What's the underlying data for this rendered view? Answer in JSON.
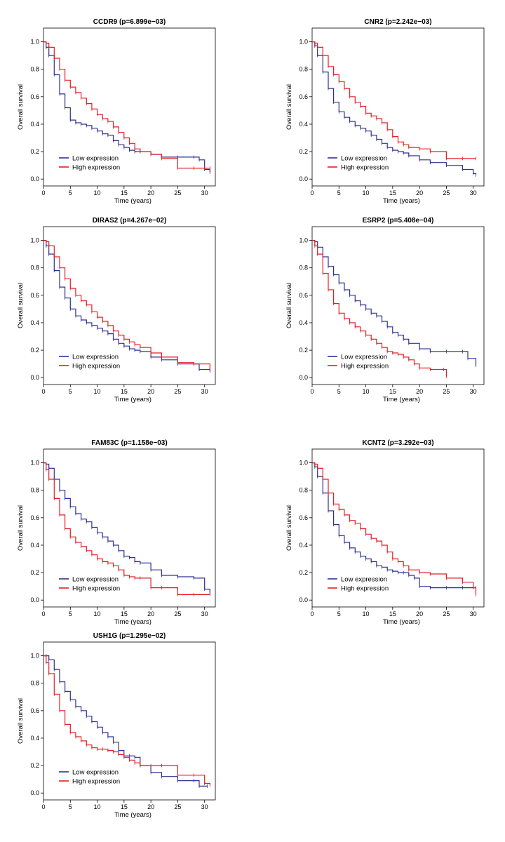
{
  "colors": {
    "low": "#2e3192",
    "high": "#e31e24",
    "axis": "#000000"
  },
  "chart_data": [
    {
      "type": "line",
      "title": "CCDR9 (p=6.899e−03)",
      "xlabel": "Time (years)",
      "ylabel": "Overall survival",
      "xlim": [
        0,
        32
      ],
      "ylim": [
        -0.05,
        1.1
      ],
      "xticks": [
        "0",
        "5",
        "10",
        "15",
        "20",
        "25",
        "30"
      ],
      "yticks": [
        "0.0",
        "0.2",
        "0.4",
        "0.6",
        "0.8",
        "1.0"
      ],
      "legend": [
        "Low expression",
        "High expression"
      ],
      "series": [
        {
          "name": "Low expression",
          "x": [
            0,
            0.5,
            1,
            2,
            3,
            4,
            5,
            6,
            7,
            8,
            9,
            10,
            11,
            12,
            13,
            14,
            15,
            16,
            17,
            18,
            20,
            22,
            25,
            28,
            29,
            30,
            31
          ],
          "y": [
            1.0,
            0.96,
            0.9,
            0.76,
            0.62,
            0.52,
            0.43,
            0.41,
            0.4,
            0.39,
            0.37,
            0.35,
            0.33,
            0.32,
            0.28,
            0.25,
            0.23,
            0.21,
            0.2,
            0.2,
            0.18,
            0.16,
            0.16,
            0.16,
            0.14,
            0.07,
            0.05
          ]
        },
        {
          "name": "High expression",
          "x": [
            0,
            0.5,
            1,
            2,
            3,
            4,
            5,
            6,
            7,
            8,
            9,
            10,
            11,
            12,
            13,
            14,
            15,
            16,
            17,
            18,
            20,
            22,
            25,
            28,
            30,
            31
          ],
          "y": [
            1.0,
            0.99,
            0.96,
            0.88,
            0.8,
            0.72,
            0.67,
            0.63,
            0.59,
            0.55,
            0.51,
            0.47,
            0.44,
            0.42,
            0.38,
            0.34,
            0.3,
            0.26,
            0.22,
            0.2,
            0.18,
            0.15,
            0.08,
            0.08,
            0.08,
            0.08
          ]
        }
      ]
    },
    {
      "type": "line",
      "title": "CNR2 (p=2.242e−03)",
      "xlabel": "Time (years)",
      "ylabel": "Overall survival",
      "xlim": [
        0,
        32
      ],
      "ylim": [
        -0.05,
        1.1
      ],
      "xticks": [
        "0",
        "5",
        "10",
        "15",
        "20",
        "25",
        "30"
      ],
      "yticks": [
        "0.0",
        "0.2",
        "0.4",
        "0.6",
        "0.8",
        "1.0"
      ],
      "legend": [
        "Low expression",
        "High expression"
      ],
      "series": [
        {
          "name": "Low expression",
          "x": [
            0,
            0.5,
            1,
            2,
            3,
            4,
            5,
            6,
            7,
            8,
            9,
            10,
            11,
            12,
            13,
            14,
            15,
            16,
            17,
            18,
            20,
            22,
            25,
            28,
            30,
            30.5
          ],
          "y": [
            1.0,
            0.97,
            0.9,
            0.78,
            0.66,
            0.56,
            0.49,
            0.45,
            0.42,
            0.39,
            0.37,
            0.35,
            0.32,
            0.29,
            0.26,
            0.23,
            0.21,
            0.2,
            0.19,
            0.17,
            0.14,
            0.12,
            0.1,
            0.07,
            0.04,
            0.03
          ]
        },
        {
          "name": "High expression",
          "x": [
            0,
            0.5,
            1,
            2,
            3,
            4,
            5,
            6,
            7,
            8,
            9,
            10,
            11,
            12,
            13,
            14,
            15,
            16,
            17,
            18,
            20,
            22,
            25,
            28,
            30.5
          ],
          "y": [
            1.0,
            0.99,
            0.96,
            0.9,
            0.82,
            0.76,
            0.71,
            0.66,
            0.6,
            0.56,
            0.53,
            0.48,
            0.46,
            0.44,
            0.41,
            0.36,
            0.31,
            0.27,
            0.25,
            0.23,
            0.22,
            0.2,
            0.15,
            0.15,
            0.15
          ]
        }
      ]
    },
    {
      "type": "line",
      "title": "DIRAS2 (p=4.267e−02)",
      "xlabel": "Time (years)",
      "ylabel": "Overall survival",
      "xlim": [
        0,
        32
      ],
      "ylim": [
        -0.05,
        1.1
      ],
      "xticks": [
        "0",
        "5",
        "10",
        "15",
        "20",
        "25",
        "30"
      ],
      "yticks": [
        "0.0",
        "0.2",
        "0.4",
        "0.6",
        "0.8",
        "1.0"
      ],
      "legend": [
        "Low expression",
        "High expression"
      ],
      "series": [
        {
          "name": "Low expression",
          "x": [
            0,
            0.5,
            1,
            2,
            3,
            4,
            5,
            6,
            7,
            8,
            9,
            10,
            11,
            12,
            13,
            14,
            15,
            16,
            17,
            18,
            20,
            22,
            25,
            28,
            29,
            31
          ],
          "y": [
            1.0,
            0.96,
            0.9,
            0.78,
            0.66,
            0.58,
            0.5,
            0.45,
            0.42,
            0.4,
            0.38,
            0.36,
            0.34,
            0.32,
            0.28,
            0.25,
            0.23,
            0.21,
            0.2,
            0.19,
            0.15,
            0.13,
            0.1,
            0.1,
            0.06,
            0.05
          ]
        },
        {
          "name": "High expression",
          "x": [
            0,
            0.5,
            1,
            2,
            3,
            4,
            5,
            6,
            7,
            8,
            9,
            10,
            11,
            12,
            13,
            14,
            15,
            16,
            17,
            18,
            20,
            22,
            25,
            28,
            31
          ],
          "y": [
            1.0,
            0.99,
            0.96,
            0.88,
            0.8,
            0.72,
            0.65,
            0.6,
            0.56,
            0.53,
            0.48,
            0.44,
            0.41,
            0.38,
            0.34,
            0.31,
            0.28,
            0.26,
            0.24,
            0.22,
            0.18,
            0.15,
            0.11,
            0.1,
            0.06
          ]
        }
      ]
    },
    {
      "type": "line",
      "title": "ESRP2 (p=5.408e−04)",
      "xlabel": "Time (years)",
      "ylabel": "Overall survival",
      "xlim": [
        0,
        32
      ],
      "ylim": [
        -0.05,
        1.1
      ],
      "xticks": [
        "0",
        "5",
        "10",
        "15",
        "20",
        "25",
        "30"
      ],
      "yticks": [
        "0.0",
        "0.2",
        "0.4",
        "0.6",
        "0.8",
        "1.0"
      ],
      "legend": [
        "Low expression",
        "High expression"
      ],
      "series": [
        {
          "name": "Low expression",
          "x": [
            0,
            0.5,
            1,
            2,
            3,
            4,
            5,
            6,
            7,
            8,
            9,
            10,
            11,
            12,
            13,
            14,
            15,
            16,
            17,
            18,
            20,
            22,
            25,
            28,
            29,
            30.5
          ],
          "y": [
            1.0,
            0.99,
            0.95,
            0.88,
            0.81,
            0.75,
            0.69,
            0.64,
            0.6,
            0.56,
            0.53,
            0.5,
            0.47,
            0.45,
            0.41,
            0.37,
            0.33,
            0.31,
            0.28,
            0.25,
            0.21,
            0.19,
            0.19,
            0.19,
            0.14,
            0.09
          ]
        },
        {
          "name": "High expression",
          "x": [
            0,
            0.5,
            1,
            2,
            3,
            4,
            5,
            6,
            7,
            8,
            9,
            10,
            11,
            12,
            13,
            14,
            15,
            16,
            17,
            18,
            19,
            20,
            22,
            24.5,
            25
          ],
          "y": [
            1.0,
            0.96,
            0.9,
            0.76,
            0.64,
            0.54,
            0.47,
            0.43,
            0.4,
            0.37,
            0.34,
            0.31,
            0.28,
            0.25,
            0.22,
            0.19,
            0.18,
            0.17,
            0.15,
            0.13,
            0.1,
            0.07,
            0.06,
            0.06,
            0.01
          ]
        }
      ]
    },
    {
      "type": "line",
      "title": "FAM83C (p=1.158e−03)",
      "xlabel": "Time (years)",
      "ylabel": "Overall survival",
      "xlim": [
        0,
        32
      ],
      "ylim": [
        -0.05,
        1.1
      ],
      "xticks": [
        "0",
        "5",
        "10",
        "15",
        "20",
        "25",
        "30"
      ],
      "yticks": [
        "0.0",
        "0.2",
        "0.4",
        "0.6",
        "0.8",
        "1.0"
      ],
      "legend": [
        "Low expression",
        "High expression"
      ],
      "series": [
        {
          "name": "Low expression",
          "x": [
            0,
            0.5,
            1,
            2,
            3,
            4,
            5,
            6,
            7,
            8,
            9,
            10,
            11,
            12,
            13,
            14,
            15,
            16,
            17,
            18,
            20,
            22,
            25,
            28,
            30,
            31
          ],
          "y": [
            1.0,
            0.99,
            0.96,
            0.88,
            0.8,
            0.74,
            0.68,
            0.63,
            0.59,
            0.57,
            0.53,
            0.49,
            0.46,
            0.43,
            0.4,
            0.36,
            0.32,
            0.31,
            0.28,
            0.27,
            0.22,
            0.18,
            0.17,
            0.16,
            0.08,
            0.05
          ]
        },
        {
          "name": "High expression",
          "x": [
            0,
            0.5,
            1,
            2,
            3,
            4,
            5,
            6,
            7,
            8,
            9,
            10,
            11,
            12,
            13,
            14,
            15,
            16,
            17,
            18,
            20,
            22,
            25,
            28,
            31
          ],
          "y": [
            1.0,
            0.95,
            0.88,
            0.74,
            0.62,
            0.52,
            0.46,
            0.42,
            0.39,
            0.36,
            0.33,
            0.3,
            0.28,
            0.27,
            0.25,
            0.22,
            0.18,
            0.17,
            0.16,
            0.16,
            0.09,
            0.09,
            0.04,
            0.04,
            0.04
          ]
        }
      ]
    },
    {
      "type": "line",
      "title": "KCNT2 (p=3.292e−03)",
      "xlabel": "Time (years)",
      "ylabel": "Overall survival",
      "xlim": [
        0,
        32
      ],
      "ylim": [
        -0.05,
        1.1
      ],
      "xticks": [
        "0",
        "5",
        "10",
        "15",
        "20",
        "25",
        "30"
      ],
      "yticks": [
        "0.0",
        "0.2",
        "0.4",
        "0.6",
        "0.8",
        "1.0"
      ],
      "legend": [
        "Low expression",
        "High expression"
      ],
      "series": [
        {
          "name": "Low expression",
          "x": [
            0,
            0.5,
            1,
            2,
            3,
            4,
            5,
            6,
            7,
            8,
            9,
            10,
            11,
            12,
            13,
            14,
            15,
            16,
            17,
            18,
            19,
            20,
            22,
            25,
            28,
            30.5
          ],
          "y": [
            1.0,
            0.97,
            0.9,
            0.78,
            0.65,
            0.55,
            0.47,
            0.42,
            0.38,
            0.35,
            0.32,
            0.3,
            0.28,
            0.25,
            0.24,
            0.22,
            0.21,
            0.2,
            0.2,
            0.18,
            0.16,
            0.1,
            0.09,
            0.09,
            0.09,
            0.09
          ]
        },
        {
          "name": "High expression",
          "x": [
            0,
            0.5,
            1,
            2,
            3,
            4,
            5,
            6,
            7,
            8,
            9,
            10,
            11,
            12,
            13,
            14,
            15,
            16,
            17,
            18,
            20,
            22,
            25,
            28,
            30,
            30.5
          ],
          "y": [
            1.0,
            0.99,
            0.96,
            0.88,
            0.78,
            0.7,
            0.66,
            0.62,
            0.58,
            0.56,
            0.52,
            0.48,
            0.45,
            0.43,
            0.4,
            0.35,
            0.3,
            0.28,
            0.25,
            0.22,
            0.2,
            0.19,
            0.16,
            0.13,
            0.09,
            0.04
          ]
        }
      ]
    },
    {
      "type": "line",
      "title": "USH1G (p=1.295e−02)",
      "xlabel": "Time (years)",
      "ylabel": "Overall survival",
      "xlim": [
        0,
        32
      ],
      "ylim": [
        -0.05,
        1.1
      ],
      "xticks": [
        "0",
        "5",
        "10",
        "15",
        "20",
        "25",
        "30"
      ],
      "yticks": [
        "0.0",
        "0.2",
        "0.4",
        "0.6",
        "0.8",
        "1.0"
      ],
      "legend": [
        "Low expression",
        "High expression"
      ],
      "series": [
        {
          "name": "Low expression",
          "x": [
            0,
            0.5,
            1,
            2,
            3,
            4,
            5,
            6,
            7,
            8,
            9,
            10,
            11,
            12,
            13,
            14,
            15,
            16,
            17,
            18,
            20,
            22,
            25,
            28,
            29,
            30.5
          ],
          "y": [
            1.0,
            1.0,
            0.97,
            0.9,
            0.81,
            0.74,
            0.68,
            0.63,
            0.6,
            0.56,
            0.52,
            0.48,
            0.44,
            0.41,
            0.37,
            0.31,
            0.27,
            0.27,
            0.26,
            0.2,
            0.15,
            0.12,
            0.09,
            0.09,
            0.05,
            0.05
          ]
        },
        {
          "name": "High expression",
          "x": [
            0,
            0.5,
            1,
            2,
            3,
            4,
            5,
            6,
            7,
            8,
            9,
            10,
            11,
            12,
            13,
            14,
            15,
            16,
            17,
            18,
            20,
            22,
            25,
            28,
            30,
            31
          ],
          "y": [
            1.0,
            0.95,
            0.87,
            0.72,
            0.6,
            0.5,
            0.44,
            0.41,
            0.38,
            0.35,
            0.33,
            0.32,
            0.32,
            0.31,
            0.3,
            0.28,
            0.26,
            0.24,
            0.22,
            0.2,
            0.2,
            0.2,
            0.13,
            0.13,
            0.07,
            0.06
          ]
        }
      ]
    }
  ]
}
